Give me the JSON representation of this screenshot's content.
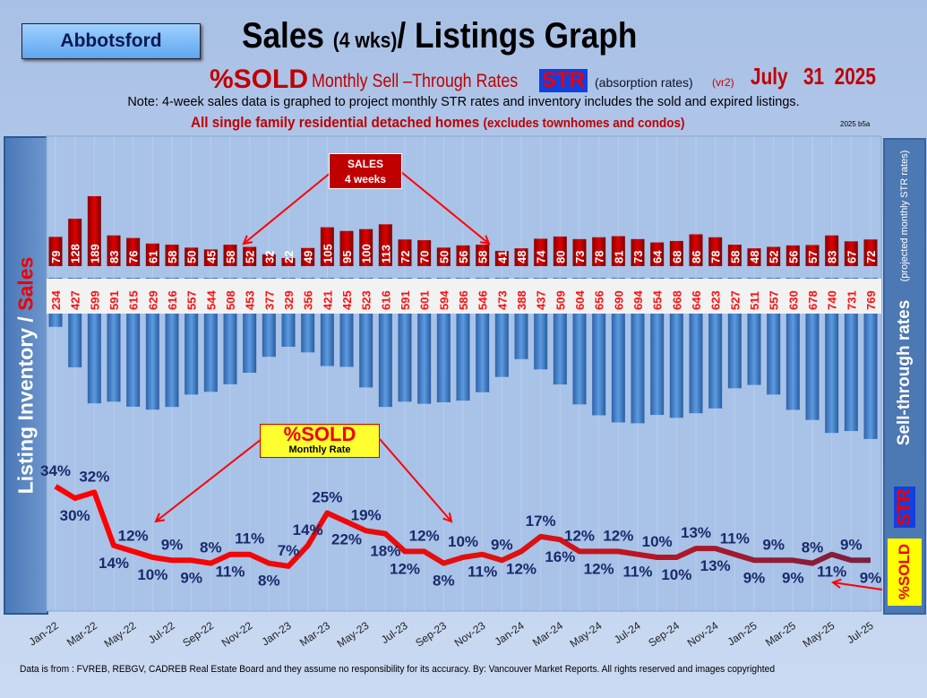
{
  "header": {
    "city": "Abbotsford",
    "title_a": "Sales",
    "title_b": "(4 wks)",
    "title_c": "/ Listings Graph",
    "sub_pct": "%SOLD",
    "sub_rest": "Monthly Sell –Through Rates",
    "sub_str": "STR",
    "sub_abs": "(absorption rates)",
    "sub_vr": "(vr2)",
    "date": "July   31  2025",
    "note": "Note: 4-week sales data is graphed to project monthly STR rates and inventory includes the sold and expired listings.",
    "scope_a": "All single family residential detached homes",
    "scope_b": "(excludes townhomes and condos)",
    "version": "2025 b5a"
  },
  "left_panel": {
    "a": "Listing Inventory / ",
    "b": "Sales"
  },
  "right_panel": {
    "main": "Sell-through rates",
    "proj": "(projected monthly STR rates)",
    "str": "STR",
    "sold": "%SOLD"
  },
  "callouts": {
    "sales_1": "SALES",
    "sales_2": "4  weeks",
    "sold_1": "%SOLD",
    "sold_2": "Monthly Rate"
  },
  "footer": "Data is from : FVREB, REBGV, CADREB Real Estate Board and they assume no responsibility for its accuracy. By: Vancouver Market Reports. All rights reserved and  images copyrighted",
  "colors": {
    "sales": "#c00000",
    "listings": "#4a86d0",
    "line": "#ff0000",
    "label": "#1a2a6a"
  },
  "chart_data": {
    "type": "bar+line",
    "x_tick_labels": [
      "Jan-22",
      "Mar-22",
      "May-22",
      "Jul-22",
      "Sep-22",
      "Nov-22",
      "Jan-23",
      "Mar-23",
      "May-23",
      "Jul-23",
      "Sep-23",
      "Nov-23",
      "Jan-24",
      "Mar-24",
      "May-24",
      "Jul-24",
      "Sep-24",
      "Nov-24",
      "Jan-25",
      "Mar-25",
      "May-25",
      "Jul-25"
    ],
    "sales_4wk": [
      79,
      128,
      189,
      83,
      76,
      61,
      58,
      50,
      45,
      58,
      52,
      32,
      22,
      49,
      105,
      95,
      100,
      113,
      72,
      70,
      50,
      56,
      58,
      41,
      48,
      74,
      80,
      73,
      78,
      81,
      73,
      64,
      68,
      86,
      78,
      58,
      48,
      52,
      56,
      57,
      83,
      67,
      72
    ],
    "listings": [
      234,
      427,
      599,
      591,
      615,
      629,
      616,
      557,
      544,
      508,
      453,
      377,
      329,
      356,
      421,
      425,
      523,
      616,
      591,
      601,
      594,
      586,
      546,
      473,
      388,
      437,
      509,
      604,
      656,
      690,
      694,
      654,
      668,
      646,
      623,
      527,
      511,
      557,
      630,
      678,
      740,
      731,
      769
    ],
    "pct_sold": [
      34,
      30,
      32,
      14,
      12,
      10,
      9,
      9,
      8,
      11,
      11,
      8,
      7,
      14,
      25,
      22,
      19,
      18,
      12,
      12,
      8,
      10,
      11,
      9,
      12,
      17,
      16,
      12,
      12,
      12,
      11,
      10,
      10,
      13,
      13,
      11,
      9,
      9,
      9,
      8,
      11,
      9,
      9
    ]
  }
}
